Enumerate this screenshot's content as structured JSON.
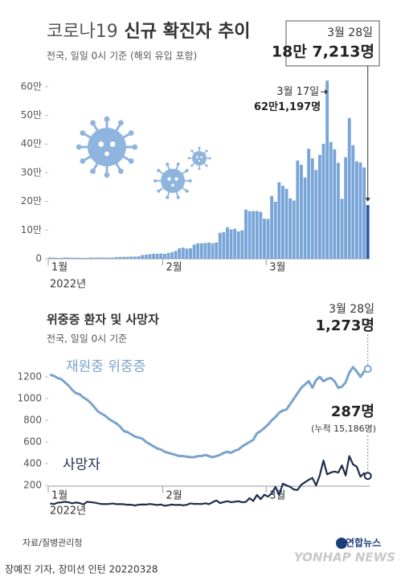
{
  "chart_data": [
    {
      "type": "bar",
      "title_prefix": "코로나19",
      "title": "신규 확진자 추이",
      "subtitle": "전국, 일일 0시 기준 (해외 유입 포함)",
      "xlabel": "2022년",
      "categories": [
        "1월",
        null,
        null,
        null,
        null,
        null,
        null,
        null,
        null,
        null,
        null,
        null,
        null,
        null,
        null,
        null,
        null,
        null,
        null,
        null,
        null,
        null,
        null,
        null,
        null,
        null,
        null,
        null,
        null,
        null,
        null,
        "2월",
        null,
        null,
        null,
        null,
        null,
        null,
        null,
        null,
        null,
        null,
        null,
        null,
        null,
        null,
        null,
        null,
        null,
        null,
        null,
        null,
        null,
        null,
        null,
        null,
        null,
        null,
        null,
        "3월",
        null,
        null,
        null,
        null,
        null,
        null,
        null,
        null,
        null,
        null,
        null,
        null,
        null,
        null,
        null,
        null,
        null,
        null,
        null,
        null,
        null,
        null,
        null,
        null,
        null,
        null,
        null
      ],
      "values": [
        4415,
        3833,
        3129,
        3024,
        4444,
        4126,
        3714,
        3511,
        3376,
        3005,
        3097,
        4388,
        4167,
        4542,
        4419,
        4194,
        3859,
        4070,
        5804,
        6603,
        6769,
        7009,
        7630,
        7513,
        8571,
        13012,
        14518,
        16096,
        17542,
        17528,
        18342,
        17079,
        20270,
        22907,
        27443,
        36362,
        38691,
        35286,
        36719,
        49567,
        54122,
        53926,
        54941,
        56431,
        53926,
        57177,
        90443,
        93135,
        109831,
        102211,
        104829,
        95362,
        99573,
        171452,
        165890,
        166209,
        166722,
        163566,
        139626,
        138993,
        219241,
        198803,
        266853,
        254327,
        243628,
        210716,
        202721,
        342446,
        327549,
        282987,
        383665,
        350190,
        309790,
        362338,
        400741,
        621197,
        407017,
        381454,
        334708,
        209169,
        353980,
        490881,
        395598,
        339514,
        335580,
        318130,
        187213
      ],
      "color": "#78a5d8",
      "highlight_color": "#2d5a9e",
      "ylim": [
        0,
        650000
      ],
      "yticks": [
        0,
        {
          "value": 100000,
          "label": "10만"
        },
        {
          "value": 200000,
          "label": "20만"
        },
        {
          "value": 300000,
          "label": "30만"
        },
        {
          "value": 400000,
          "label": "40만"
        },
        {
          "value": 500000,
          "label": "50만"
        },
        {
          "value": 600000,
          "label": "60만"
        }
      ],
      "grid": false,
      "annotations": [
        {
          "date": "3월 17일",
          "label": "62만1,197명"
        },
        {
          "date": "3월 28일",
          "label": "18만 7,213명"
        }
      ]
    },
    {
      "type": "line",
      "title": "위중증 환자 및 사망자",
      "subtitle": "전국, 일일 0시 기준",
      "xlabel": "2022년",
      "categories": [
        "1월",
        null,
        null,
        null,
        null,
        null,
        null,
        null,
        null,
        null,
        null,
        null,
        null,
        null,
        null,
        null,
        null,
        null,
        null,
        null,
        null,
        null,
        null,
        null,
        null,
        null,
        null,
        null,
        null,
        null,
        null,
        "2월",
        null,
        null,
        null,
        null,
        null,
        null,
        null,
        null,
        null,
        null,
        null,
        null,
        null,
        null,
        null,
        null,
        null,
        null,
        null,
        null,
        null,
        null,
        null,
        null,
        null,
        null,
        null,
        "3월",
        null,
        null,
        null,
        null,
        null,
        null,
        null,
        null,
        null,
        null,
        null,
        null,
        null,
        null,
        null,
        null,
        null,
        null,
        null,
        null,
        null,
        null,
        null,
        null,
        null,
        null,
        null
      ],
      "series": [
        {
          "name": "재원중 위중증",
          "color": "#7aa3cc",
          "values": [
            1220,
            1210,
            1190,
            1180,
            1150,
            1120,
            1080,
            1050,
            1040,
            1010,
            990,
            960,
            920,
            880,
            860,
            840,
            810,
            790,
            770,
            740,
            700,
            690,
            670,
            650,
            640,
            630,
            600,
            580,
            560,
            540,
            530,
            510,
            500,
            490,
            480,
            470,
            470,
            465,
            460,
            460,
            470,
            470,
            480,
            470,
            460,
            470,
            480,
            500,
            510,
            500,
            520,
            530,
            560,
            580,
            600,
            620,
            680,
            700,
            730,
            760,
            800,
            830,
            870,
            890,
            900,
            950,
            1000,
            1050,
            1100,
            1130,
            1160,
            1100,
            1170,
            1200,
            1160,
            1180,
            1190,
            1160,
            1100,
            1110,
            1150,
            1240,
            1290,
            1250,
            1200,
            1250,
            1273
          ]
        },
        {
          "name": "사망자",
          "color": "#1e2d4c",
          "values": [
            34,
            27,
            40,
            43,
            49,
            44,
            35,
            42,
            37,
            24,
            48,
            45,
            41,
            34,
            28,
            28,
            29,
            33,
            27,
            28,
            26,
            21,
            22,
            14,
            22,
            24,
            23,
            28,
            24,
            19,
            24,
            12,
            17,
            23,
            19,
            21,
            16,
            21,
            34,
            29,
            30,
            28,
            35,
            27,
            45,
            61,
            37,
            46,
            54,
            45,
            49,
            54,
            44,
            48,
            82,
            56,
            112,
            73,
            114,
            96,
            128,
            186,
            112,
            216,
            200,
            186,
            161,
            158,
            206,
            229,
            251,
            269,
            200,
            293,
            429,
            301,
            319,
            327,
            318,
            384,
            291,
            470,
            393,
            373,
            280,
            312,
            287
          ]
        }
      ],
      "ylim": [
        0,
        1400
      ],
      "yticks": [
        200,
        400,
        600,
        800,
        1000,
        1200
      ],
      "grid": false,
      "annotations": [
        {
          "date": "3월 28일",
          "label": "1,273명"
        },
        {
          "label": "287명",
          "note": "(누적 15,186명)"
        }
      ]
    }
  ],
  "footer": {
    "source": "자료/질병관리청",
    "credit": "장예진 기자, 장미선 인턴  20220328",
    "brand": "연합뉴스",
    "brand_en": "YONHAP NEWS"
  }
}
